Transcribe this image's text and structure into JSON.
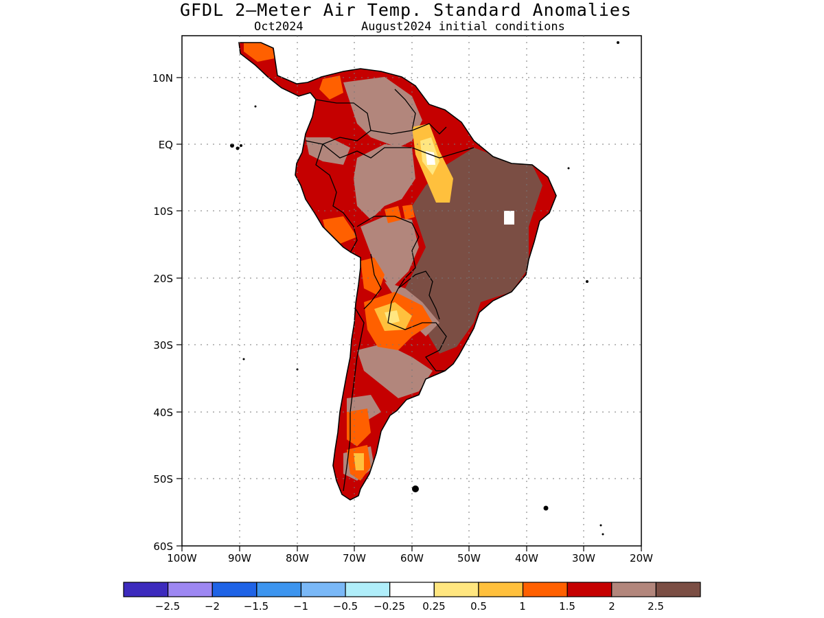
{
  "title": "GFDL 2—Meter Air Temp. Standard Anomalies",
  "subtitle_left": "Oct2024",
  "subtitle_right": "August2024 initial conditions",
  "map": {
    "region": "South America",
    "lon_range": [
      -100,
      -20
    ],
    "lat_range": [
      -60,
      16
    ],
    "lat_ticks": [
      {
        "value": 10,
        "label": "10N"
      },
      {
        "value": 0,
        "label": "EQ"
      },
      {
        "value": -10,
        "label": "10S"
      },
      {
        "value": -20,
        "label": "20S"
      },
      {
        "value": -30,
        "label": "30S"
      },
      {
        "value": -40,
        "label": "40S"
      },
      {
        "value": -50,
        "label": "50S"
      },
      {
        "value": -60,
        "label": "60S"
      }
    ],
    "lon_ticks": [
      {
        "value": -100,
        "label": "100W"
      },
      {
        "value": -90,
        "label": "90W"
      },
      {
        "value": -80,
        "label": "80W"
      },
      {
        "value": -70,
        "label": "70W"
      },
      {
        "value": -60,
        "label": "60W"
      },
      {
        "value": -50,
        "label": "50W"
      },
      {
        "value": -40,
        "label": "40W"
      },
      {
        "value": -30,
        "label": "30W"
      },
      {
        "value": -20,
        "label": "20W"
      }
    ],
    "grid": "dotted"
  },
  "colorbar": {
    "colors": [
      "#3d2bbd",
      "#9d87f2",
      "#1f63e6",
      "#3d95ef",
      "#7ab8f7",
      "#b0eefa",
      "#ffffff",
      "#ffe680",
      "#ffc03d",
      "#ff6000",
      "#c50000",
      "#b2867c",
      "#7b4e44"
    ],
    "tick_labels": [
      "−2.5",
      "−2",
      "−1.5",
      "−1",
      "−0.5",
      "−0.25",
      "0.25",
      "0.5",
      "1",
      "1.5",
      "2",
      "2.5"
    ]
  }
}
